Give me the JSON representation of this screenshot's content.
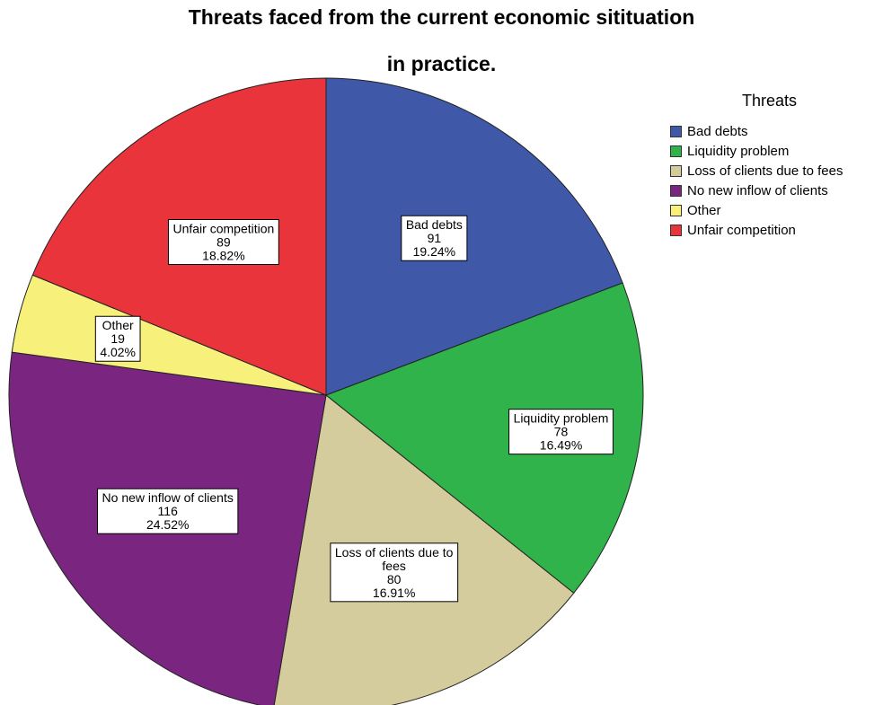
{
  "chart_data": {
    "type": "pie",
    "title_line1": "Threats faced from the current economic sitituation",
    "title_line2": "in practice.",
    "legend_title": "Threats",
    "legend_position": "right",
    "slices": [
      {
        "name": "Bad debts",
        "label_lines": [
          "Bad debts"
        ],
        "value": 91,
        "percent": "19.24%",
        "color": "#3f58a8"
      },
      {
        "name": "Liquidity problem",
        "label_lines": [
          "Liquidity problem"
        ],
        "value": 78,
        "percent": "16.49%",
        "color": "#2fb34a"
      },
      {
        "name": "Loss of clients due to fees",
        "label_lines": [
          "Loss of clients due to",
          "fees"
        ],
        "value": 80,
        "percent": "16.91%",
        "color": "#d4cc9c"
      },
      {
        "name": "No new inflow of clients",
        "label_lines": [
          "No new inflow of clients"
        ],
        "value": 116,
        "percent": "24.52%",
        "color": "#7a2681"
      },
      {
        "name": "Other",
        "label_lines": [
          "Other"
        ],
        "value": 19,
        "percent": "4.02%",
        "color": "#f7f07a"
      },
      {
        "name": "Unfair competition",
        "label_lines": [
          "Unfair competition"
        ],
        "value": 89,
        "percent": "18.82%",
        "color": "#e8343a"
      }
    ]
  }
}
